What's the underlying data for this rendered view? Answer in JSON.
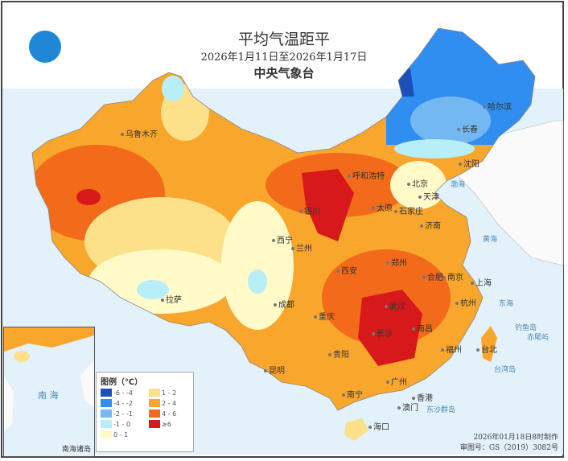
{
  "title": "平均气温距平",
  "date_range": "2026年1月11日至2026年1月17日",
  "agency": "中央气象台",
  "legend": {
    "heading": "图例（℃）",
    "items": [
      {
        "label": "-6 - -4",
        "color": "#1d4fb8"
      },
      {
        "label": "1 - 2",
        "color": "#fde08a"
      },
      {
        "label": "-4 - -2",
        "color": "#2f8ef0"
      },
      {
        "label": "2 - 4",
        "color": "#f9a62c"
      },
      {
        "label": "-2 - -1",
        "color": "#74b8f2"
      },
      {
        "label": "4 - 6",
        "color": "#f26a1a"
      },
      {
        "label": "-1 - 0",
        "color": "#b8eef7"
      },
      {
        "label": "≥6",
        "color": "#d7191c"
      },
      {
        "label": "0 - 1",
        "color": "#fffac8"
      }
    ]
  },
  "cities": [
    "乌鲁木齐",
    "哈尔滨",
    "长春",
    "沈阳",
    "呼和浩特",
    "北京",
    "天津",
    "石家庄",
    "太原",
    "济南",
    "银川",
    "西宁",
    "兰州",
    "西安",
    "郑州",
    "合肥",
    "南京",
    "上海",
    "杭州",
    "武汉",
    "长沙",
    "南昌",
    "福州",
    "台北",
    "拉萨",
    "成都",
    "重庆",
    "贵阳",
    "昆明",
    "南宁",
    "广州",
    "香港",
    "澳门",
    "海口"
  ],
  "seas": [
    "渤海",
    "黄海",
    "东海",
    "钓鱼岛",
    "赤尾屿",
    "台湾岛",
    "东沙群岛"
  ],
  "inset": {
    "sea": "南 海",
    "label": "南海诸岛"
  },
  "footer": {
    "made": "2026年01月18日8时制作",
    "approval": "审图号：GS（2019）3082号"
  }
}
